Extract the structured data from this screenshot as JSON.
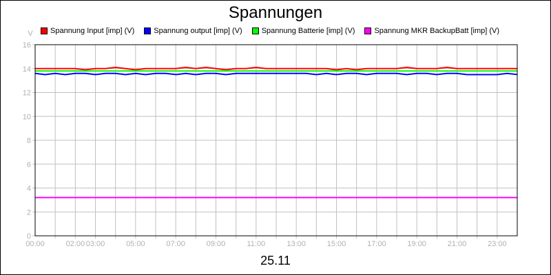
{
  "chart_data": {
    "type": "line",
    "title": "Spannungen",
    "xlabel": "25.11",
    "ylabel": "V",
    "xlim": [
      0,
      24
    ],
    "ylim": [
      0,
      16
    ],
    "yticks": [
      0,
      2,
      4,
      6,
      8,
      10,
      12,
      14,
      16
    ],
    "xtick_labels": [
      {
        "h": 0,
        "label": "00:00"
      },
      {
        "h": 2,
        "label": "02:00"
      },
      {
        "h": 3,
        "label": "03:00"
      },
      {
        "h": 5,
        "label": "05:00"
      },
      {
        "h": 7,
        "label": "07:00"
      },
      {
        "h": 9,
        "label": "09:00"
      },
      {
        "h": 11,
        "label": "11:00"
      },
      {
        "h": 13,
        "label": "13:00"
      },
      {
        "h": 15,
        "label": "15:00"
      },
      {
        "h": 17,
        "label": "17:00"
      },
      {
        "h": 19,
        "label": "19:00"
      },
      {
        "h": 21,
        "label": "21:00"
      },
      {
        "h": 23,
        "label": "23:00"
      }
    ],
    "grid": true,
    "legend_position": "top",
    "x_step_hours": 0.5,
    "series": [
      {
        "name": "Spannung Input [imp] (V)",
        "color": "#ff0000",
        "values": [
          14.0,
          14.0,
          14.0,
          14.0,
          14.0,
          13.9,
          14.0,
          14.0,
          14.1,
          14.0,
          13.9,
          14.0,
          14.0,
          14.0,
          14.0,
          14.1,
          14.0,
          14.1,
          14.0,
          13.9,
          14.0,
          14.0,
          14.1,
          14.0,
          14.0,
          14.0,
          14.0,
          14.0,
          14.0,
          14.0,
          13.9,
          14.0,
          13.9,
          14.0,
          14.0,
          14.0,
          14.0,
          14.1,
          14.0,
          14.0,
          14.0,
          14.1,
          14.0,
          14.0,
          14.0,
          14.0,
          14.0,
          14.0,
          14.0
        ]
      },
      {
        "name": "Spannung output [imp] (V)",
        "color": "#0000ff",
        "values": [
          13.6,
          13.5,
          13.6,
          13.5,
          13.6,
          13.6,
          13.5,
          13.6,
          13.6,
          13.5,
          13.6,
          13.5,
          13.6,
          13.6,
          13.5,
          13.6,
          13.5,
          13.6,
          13.6,
          13.5,
          13.6,
          13.6,
          13.6,
          13.6,
          13.6,
          13.6,
          13.6,
          13.6,
          13.5,
          13.6,
          13.5,
          13.6,
          13.6,
          13.5,
          13.6,
          13.6,
          13.6,
          13.5,
          13.6,
          13.6,
          13.5,
          13.6,
          13.6,
          13.5,
          13.5,
          13.5,
          13.5,
          13.6,
          13.5
        ]
      },
      {
        "name": "Spannung Batterie [imp] (V)",
        "color": "#00ff00",
        "values": [
          13.8,
          13.8,
          13.8,
          13.8,
          13.8,
          13.8,
          13.8,
          13.8,
          13.8,
          13.8,
          13.8,
          13.8,
          13.8,
          13.8,
          13.8,
          13.8,
          13.8,
          13.8,
          13.8,
          13.8,
          13.8,
          13.8,
          13.8,
          13.8,
          13.8,
          13.8,
          13.8,
          13.8,
          13.8,
          13.8,
          13.8,
          13.8,
          13.8,
          13.8,
          13.8,
          13.8,
          13.8,
          13.8,
          13.8,
          13.8,
          13.8,
          13.8,
          13.8,
          13.8,
          13.8,
          13.8,
          13.8,
          13.8,
          13.8
        ]
      },
      {
        "name": "Spannung MKR BackupBatt [imp] (V)",
        "color": "#ff00ff",
        "values": [
          3.2,
          3.2,
          3.2,
          3.2,
          3.2,
          3.2,
          3.2,
          3.2,
          3.2,
          3.2,
          3.2,
          3.2,
          3.2,
          3.2,
          3.2,
          3.2,
          3.2,
          3.2,
          3.2,
          3.2,
          3.2,
          3.2,
          3.2,
          3.2,
          3.2,
          3.2,
          3.2,
          3.2,
          3.2,
          3.2,
          3.2,
          3.2,
          3.2,
          3.2,
          3.2,
          3.2,
          3.2,
          3.2,
          3.2,
          3.2,
          3.2,
          3.2,
          3.2,
          3.2,
          3.2,
          3.2,
          3.2,
          3.2,
          3.2
        ]
      }
    ]
  }
}
